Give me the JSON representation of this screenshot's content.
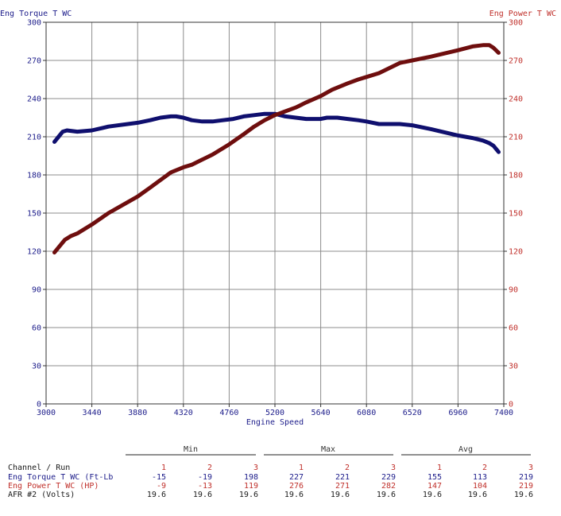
{
  "chart_data": {
    "type": "line",
    "x_axis": {
      "label": "Engine Speed",
      "min": 3000,
      "max": 7400,
      "ticks": [
        3000,
        3440,
        3880,
        4320,
        4760,
        5200,
        5640,
        6080,
        6520,
        6960,
        7400
      ]
    },
    "y_axis_left": {
      "label": "Eng Torque T WC",
      "min": 0,
      "max": 300,
      "ticks": [
        0,
        30,
        60,
        90,
        120,
        150,
        180,
        210,
        240,
        270,
        300
      ],
      "color": "#1c1c8a"
    },
    "y_axis_right": {
      "label": "Eng Power T WC",
      "min": 0,
      "max": 300,
      "ticks": [
        0,
        30,
        60,
        90,
        120,
        150,
        180,
        210,
        240,
        270,
        300
      ],
      "color": "#c0302b"
    },
    "grid": true,
    "series": [
      {
        "name": "Eng Torque T WC",
        "axis": "left",
        "color": "#0f0f6e",
        "x": [
          3080,
          3120,
          3160,
          3200,
          3300,
          3440,
          3600,
          3880,
          4000,
          4100,
          4200,
          4250,
          4320,
          4400,
          4500,
          4600,
          4700,
          4800,
          4900,
          5000,
          5100,
          5200,
          5300,
          5400,
          5500,
          5640,
          5700,
          5800,
          5900,
          6000,
          6080,
          6200,
          6300,
          6400,
          6520,
          6700,
          6960,
          7100,
          7200,
          7260,
          7300,
          7350
        ],
        "y": [
          206,
          210,
          214,
          215,
          214,
          215,
          218,
          221,
          223,
          225,
          226,
          226,
          225,
          223,
          222,
          222,
          223,
          224,
          226,
          227,
          228,
          228,
          226,
          225,
          224,
          224,
          225,
          225,
          224,
          223,
          222,
          220,
          220,
          220,
          219,
          216,
          211,
          209,
          207,
          205,
          203,
          198
        ]
      },
      {
        "name": "Eng Power T WC",
        "axis": "right",
        "color": "#6e0e0e",
        "x": [
          3080,
          3120,
          3180,
          3240,
          3300,
          3440,
          3600,
          3880,
          4000,
          4100,
          4200,
          4320,
          4400,
          4500,
          4600,
          4760,
          4900,
          5000,
          5100,
          5200,
          5300,
          5400,
          5500,
          5640,
          5750,
          5900,
          6000,
          6080,
          6200,
          6300,
          6400,
          6520,
          6700,
          6960,
          7100,
          7200,
          7260,
          7300,
          7350
        ],
        "y": [
          119,
          123,
          129,
          132,
          134,
          141,
          150,
          163,
          170,
          176,
          182,
          186,
          188,
          192,
          196,
          204,
          212,
          218,
          223,
          227,
          230,
          233,
          237,
          242,
          247,
          252,
          255,
          257,
          260,
          264,
          268,
          270,
          273,
          278,
          281,
          282,
          282,
          280,
          276
        ]
      }
    ]
  },
  "table": {
    "group_headers": [
      "Min",
      "Max",
      "Avg"
    ],
    "channel_header": "Channel / Run",
    "runs": [
      "1",
      "2",
      "3"
    ],
    "rows": [
      {
        "label": "Eng Torque T WC (Ft-Lb",
        "color": "#1c1c8a",
        "values": [
          "-15",
          "-19",
          "198",
          "227",
          "221",
          "229",
          "155",
          "113",
          "219"
        ]
      },
      {
        "label": "Eng Power T WC (HP)",
        "color": "#c0302b",
        "values": [
          "-9",
          "-13",
          "119",
          "276",
          "271",
          "282",
          "147",
          "104",
          "219"
        ]
      },
      {
        "label": "AFR #2 (Volts)",
        "color": "#1a1a1a",
        "values": [
          "19.6",
          "19.6",
          "19.6",
          "19.6",
          "19.6",
          "19.6",
          "19.6",
          "19.6",
          "19.6"
        ]
      }
    ]
  }
}
